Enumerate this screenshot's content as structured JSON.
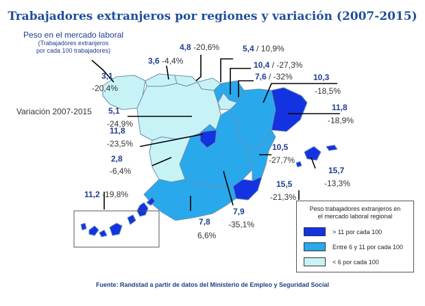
{
  "title": "Trabajadores extranjeros por regiones y variación (2007-2015)",
  "legend_top": {
    "line1": "Peso en el mercado laboral",
    "line2": "(Trabajadores extranjeros",
    "line3": "por cada 100 trabajadores)"
  },
  "variation_label": "Variación 2007-2015",
  "colors": {
    "high": "#1433e0",
    "mid": "#29a8ec",
    "low": "#c8f3f6",
    "border": "#6b8fb0",
    "text_weight": "#1f3d8f"
  },
  "regions": [
    {
      "name": "Galicia",
      "weight": "3,1",
      "variation": "-20,4%"
    },
    {
      "name": "Asturias",
      "weight": "3,6",
      "variation": "-4,4%"
    },
    {
      "name": "Cantabria",
      "weight": "4,8",
      "variation": "-20,6%"
    },
    {
      "name": "País Vasco",
      "weight": "5,4",
      "variation": "10,9%"
    },
    {
      "name": "Navarra",
      "weight": "10,4",
      "variation": "-27,3%"
    },
    {
      "name": "La Rioja",
      "weight": "7,6",
      "variation": "-32%"
    },
    {
      "name": "Aragón",
      "weight": "10,3",
      "variation": "-18,5%"
    },
    {
      "name": "Cataluña",
      "weight": "11,8",
      "variation": "-18,9%"
    },
    {
      "name": "Castilla y León",
      "weight": "5,1",
      "variation": "-24,9%"
    },
    {
      "name": "Madrid",
      "weight": "11,8",
      "variation": "-23,5%"
    },
    {
      "name": "Extremadura",
      "weight": "2,8",
      "variation": "-6,4%"
    },
    {
      "name": "C. Valenciana",
      "weight": "10,5",
      "variation": "-27,7%"
    },
    {
      "name": "Baleares",
      "weight": "15,7",
      "variation": "-13,3%"
    },
    {
      "name": "Murcia",
      "weight": "15,5",
      "variation": "-21,3%"
    },
    {
      "name": "Castilla-La Mancha",
      "weight": "7,9",
      "variation": "-35,1%"
    },
    {
      "name": "Andalucía",
      "weight": "7,8",
      "variation": "6,6%"
    },
    {
      "name": "Canarias",
      "weight": "11,2",
      "variation": "-19,8%"
    }
  ],
  "key": {
    "title_line1": "Peso trabajadores extranjeros en",
    "title_line2": "el mercado laboral regional",
    "items": [
      {
        "label": "> 11 por cada 100",
        "color": "#1433e0"
      },
      {
        "label": "Entre 6 y 11 por cada 100",
        "color": "#29a8ec"
      },
      {
        "label": "< 6 por cada 100",
        "color": "#c8f3f6"
      }
    ]
  },
  "source": "Fuente: Randstad  a partir de datos del Ministerio de Empleo y Seguridad  Social"
}
